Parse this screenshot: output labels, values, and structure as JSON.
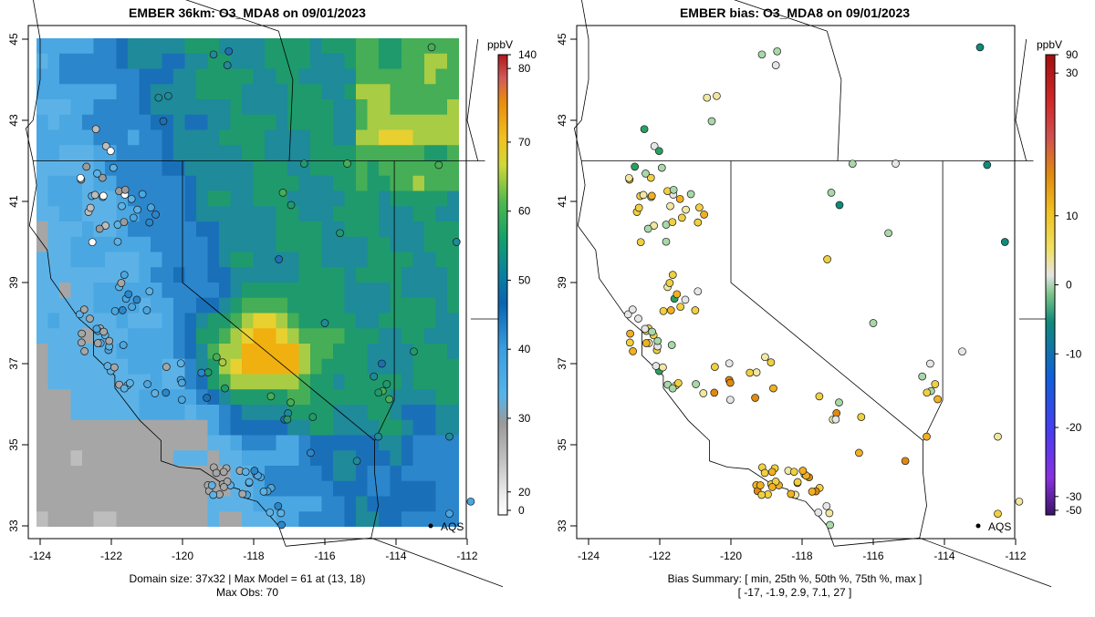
{
  "left_panel": {
    "title": "EMBER 36km: O3_MDA8 on 09/01/2023",
    "footer_line1": "Domain size: 37x32 | Max Model = 61 at (13, 18)",
    "footer_line2": "Max Obs: 70",
    "network_label": "AQS",
    "x_ticks": [
      "-124",
      "-122",
      "-120",
      "-118",
      "-116",
      "-114",
      "-112"
    ],
    "y_ticks": [
      "33",
      "35",
      "37",
      "39",
      "41",
      "43",
      "45"
    ],
    "colorbar": {
      "unit": "ppbV",
      "tick_labels": [
        "0",
        "20",
        "30",
        "40",
        "50",
        "60",
        "70",
        "80",
        "140"
      ]
    }
  },
  "right_panel": {
    "title": "EMBER bias: O3_MDA8 on 09/01/2023",
    "footer_line1": "Bias Summary: [ min, 25th %, 50th %, 75th %, max ]",
    "footer_line2": "[ -17,   -1.9,   2.9,   7.1,   27 ]",
    "network_label": "AQS",
    "x_ticks": [
      "-124",
      "-122",
      "-120",
      "-118",
      "-116",
      "-114",
      "-112"
    ],
    "y_ticks": [
      "33",
      "35",
      "37",
      "39",
      "41",
      "43",
      "45"
    ],
    "colorbar": {
      "unit": "ppbV",
      "tick_labels": [
        "90",
        "30",
        "10",
        "0",
        "-10",
        "-20",
        "-30",
        "-50"
      ]
    }
  },
  "chart_data": [
    {
      "type": "heatmap",
      "title": "EMBER 36km: O3_MDA8 on 09/01/2023",
      "variable": "O3_MDA8",
      "units": "ppbV",
      "xlim": [
        -124,
        -111.9
      ],
      "ylim": [
        33,
        45
      ],
      "domain_grid": [
        37,
        32
      ],
      "max_model": 61,
      "max_model_cell": [
        13,
        18
      ],
      "max_obs": 70
    },
    {
      "type": "scatter",
      "title": "EMBER bias: O3_MDA8 on 09/01/2023",
      "variable": "O3_MDA8 bias",
      "units": "ppbV",
      "xlim": [
        -124,
        -111.9
      ],
      "ylim": [
        33,
        45
      ],
      "bias_summary": {
        "min": -17,
        "p25": -1.9,
        "p50": 2.9,
        "p75": 7.1,
        "max": 27
      }
    }
  ]
}
